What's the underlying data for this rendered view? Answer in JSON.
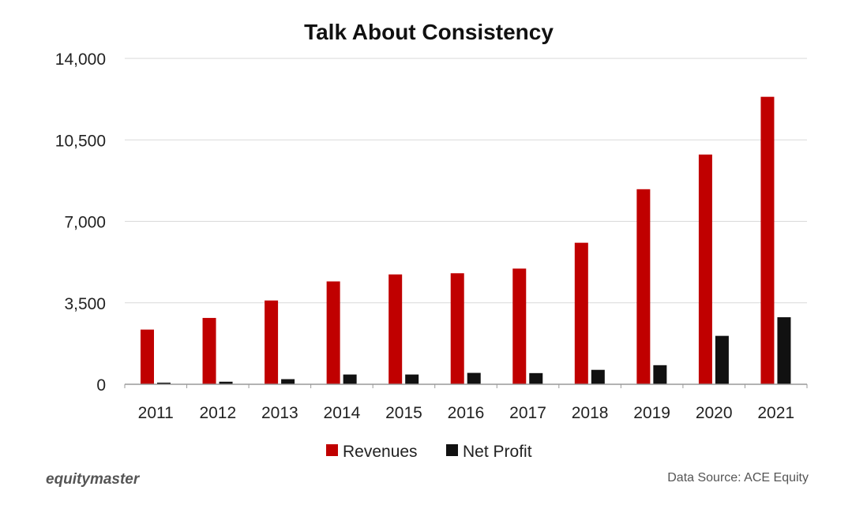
{
  "chart_data": {
    "type": "bar",
    "title": "Talk About Consistency",
    "categories": [
      "2011",
      "2012",
      "2013",
      "2014",
      "2015",
      "2016",
      "2017",
      "2018",
      "2019",
      "2020",
      "2021"
    ],
    "series": [
      {
        "name": "Revenues",
        "color": "#c00000",
        "values": [
          2350,
          2850,
          3600,
          4420,
          4720,
          4770,
          4970,
          6080,
          8380,
          9870,
          12350
        ]
      },
      {
        "name": "Net Profit",
        "color": "#111111",
        "values": [
          70,
          110,
          220,
          420,
          420,
          490,
          480,
          620,
          820,
          2080,
          2880
        ]
      }
    ],
    "ylim": [
      0,
      14000
    ],
    "yticks": [
      0,
      3500,
      7000,
      10500,
      14000
    ],
    "ytick_labels": [
      "0",
      "3,500",
      "7,000",
      "10,500",
      "14,000"
    ],
    "grid": true,
    "legend_position": "bottom"
  },
  "footer": {
    "brand": "equitymaster",
    "source": "Data Source: ACE Equity"
  }
}
